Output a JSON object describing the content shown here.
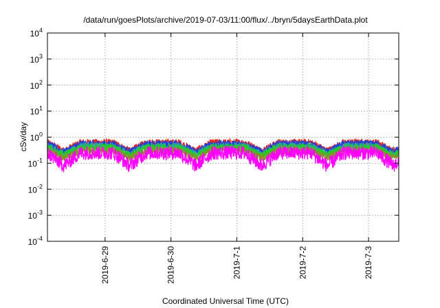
{
  "chart_data": {
    "type": "line",
    "title": "/data/run/goesPlots/archive/2019-07-03/11:00/flux/../bryn/5daysEarthData.plot",
    "xlabel": "Coordinated Universal Time (UTC)",
    "ylabel": "cSv/day",
    "yscale": "log",
    "ylim_exponents": [
      -4,
      4
    ],
    "y_tick_labels": [
      {
        "base": "10",
        "exp": "4"
      },
      {
        "base": "10",
        "exp": "3"
      },
      {
        "base": "10",
        "exp": "2"
      },
      {
        "base": "10",
        "exp": "1"
      },
      {
        "base": "10",
        "exp": "0"
      },
      {
        "base": "10",
        "exp": "-1"
      },
      {
        "base": "10",
        "exp": "-2"
      },
      {
        "base": "10",
        "exp": "-3"
      },
      {
        "base": "10",
        "exp": "-4"
      }
    ],
    "xlim": [
      "2019-06-28T03:00",
      "2019-07-03T11:00"
    ],
    "x_ticks": [
      "2019-6-29",
      "2019-6-30",
      "2019-7-1",
      "2019-7-2",
      "2019-7-3"
    ],
    "grid": true,
    "series": [
      {
        "color": "#e8261c",
        "daily_dip_hour": 9,
        "peak_value": 0.62,
        "dip_value": 0.3
      },
      {
        "color": "#1f3fd8",
        "daily_dip_hour": 9,
        "peak_value": 0.55,
        "dip_value": 0.27
      },
      {
        "color": "#2ea3a3",
        "daily_dip_hour": 9,
        "peak_value": 0.45,
        "dip_value": 0.22
      },
      {
        "color": "#22cc22",
        "daily_dip_hour": 9,
        "peak_value": 0.4,
        "dip_value": 0.2
      },
      {
        "color": "#8a8f2a",
        "daily_dip_hour": 9,
        "peak_value": 0.3,
        "dip_value": 0.16
      },
      {
        "color": "#ff00ff",
        "daily_dip_hour": 9,
        "peak_value": 0.25,
        "dip_value": 0.08
      }
    ]
  }
}
